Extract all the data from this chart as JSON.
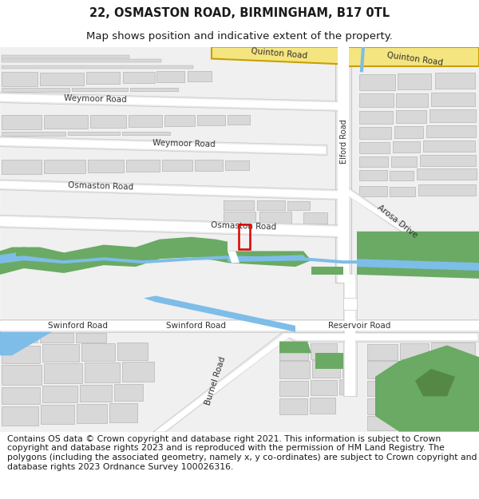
{
  "title_line1": "22, OSMASTON ROAD, BIRMINGHAM, B17 0TL",
  "title_line2": "Map shows position and indicative extent of the property.",
  "footer_text": "Contains OS data © Crown copyright and database right 2021. This information is subject to Crown copyright and database rights 2023 and is reproduced with the permission of HM Land Registry. The polygons (including the associated geometry, namely x, y co-ordinates) are subject to Crown copyright and database rights 2023 Ordnance Survey 100026316.",
  "title_fontsize": 10.5,
  "subtitle_fontsize": 9.5,
  "footer_fontsize": 7.8,
  "map_bg": "#f0f0f0",
  "road_fill": "#e8e8e8",
  "road_edge": "#c8c8c8",
  "bld_fill": "#d8d8d8",
  "bld_edge": "#aaaaaa",
  "green": "#6aaa64",
  "water": "#7dbde8",
  "plot_red": "#dd0000",
  "yellow_fill": "#f5e580",
  "yellow_edge": "#c8a000",
  "white_road": "#ffffff",
  "fig_w": 6.0,
  "fig_h": 6.25,
  "dpi": 100
}
